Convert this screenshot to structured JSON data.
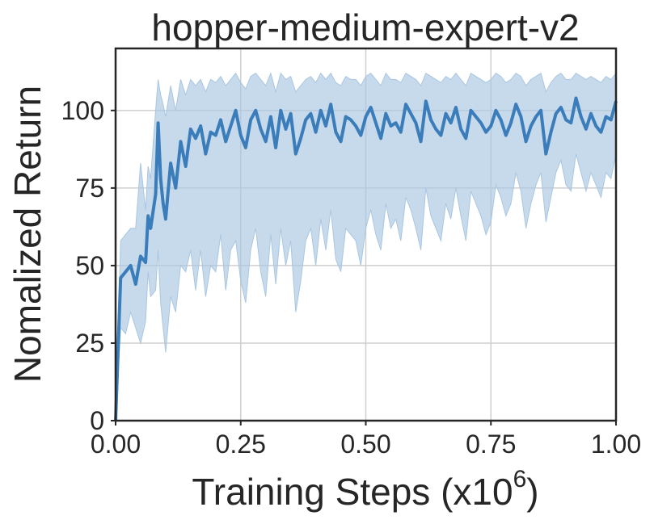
{
  "chart_data": {
    "type": "line",
    "title": "hopper-medium-expert-v2",
    "xlabel": "Training Steps (x10",
    "xlabel_exp": "6",
    "xlabel_close": ")",
    "ylabel": "Nomalized Return",
    "xlim": [
      0.0,
      1.0
    ],
    "ylim": [
      0,
      120
    ],
    "xticks": [
      0.0,
      0.25,
      0.5,
      0.75,
      1.0
    ],
    "xtick_labels": [
      "0.00",
      "0.25",
      "0.50",
      "0.75",
      "1.00"
    ],
    "yticks": [
      0,
      25,
      50,
      75,
      100
    ],
    "ytick_labels": [
      "0",
      "25",
      "50",
      "75",
      "100"
    ],
    "grid": true,
    "colors": {
      "line": "#3a7dba",
      "band": "#a9c6e2"
    },
    "series": [
      {
        "x": [
          0.0,
          0.01,
          0.02,
          0.03,
          0.04,
          0.05,
          0.06,
          0.065,
          0.07,
          0.08,
          0.085,
          0.09,
          0.095,
          0.1,
          0.11,
          0.12,
          0.13,
          0.14,
          0.15,
          0.16,
          0.17,
          0.18,
          0.19,
          0.2,
          0.21,
          0.22,
          0.23,
          0.24,
          0.25,
          0.26,
          0.27,
          0.28,
          0.29,
          0.3,
          0.31,
          0.32,
          0.33,
          0.34,
          0.35,
          0.36,
          0.37,
          0.38,
          0.39,
          0.4,
          0.41,
          0.42,
          0.43,
          0.44,
          0.45,
          0.46,
          0.47,
          0.48,
          0.49,
          0.5,
          0.51,
          0.52,
          0.53,
          0.54,
          0.55,
          0.56,
          0.57,
          0.58,
          0.59,
          0.6,
          0.61,
          0.62,
          0.63,
          0.64,
          0.65,
          0.66,
          0.67,
          0.68,
          0.69,
          0.7,
          0.71,
          0.72,
          0.73,
          0.74,
          0.75,
          0.76,
          0.77,
          0.78,
          0.79,
          0.8,
          0.81,
          0.82,
          0.83,
          0.84,
          0.85,
          0.86,
          0.87,
          0.88,
          0.89,
          0.9,
          0.91,
          0.92,
          0.93,
          0.94,
          0.95,
          0.96,
          0.97,
          0.98,
          0.99,
          1.0
        ],
        "y": [
          0,
          46,
          48,
          50,
          44,
          53,
          51,
          66,
          62,
          73,
          96,
          78,
          70,
          65,
          83,
          75,
          90,
          82,
          94,
          91,
          95,
          86,
          93,
          92,
          97,
          90,
          95,
          100,
          92,
          88,
          97,
          100,
          94,
          90,
          98,
          88,
          100,
          94,
          99,
          86,
          91,
          97,
          99,
          93,
          100,
          95,
          102,
          93,
          90,
          98,
          97,
          95,
          92,
          98,
          101,
          96,
          91,
          99,
          95,
          96,
          93,
          102,
          99,
          96,
          90,
          103,
          97,
          94,
          92,
          99,
          96,
          101,
          94,
          91,
          100,
          98,
          96,
          93,
          95,
          100,
          97,
          92,
          96,
          102,
          98,
          90,
          95,
          98,
          100,
          86,
          93,
          99,
          101,
          97,
          96,
          104,
          98,
          94,
          99,
          95,
          93,
          98,
          97,
          103
        ],
        "lower": [
          0,
          30,
          28,
          35,
          30,
          25,
          32,
          48,
          40,
          42,
          55,
          38,
          30,
          22,
          40,
          35,
          50,
          48,
          55,
          42,
          55,
          40,
          50,
          48,
          60,
          42,
          55,
          58,
          45,
          38,
          55,
          62,
          48,
          40,
          60,
          44,
          62,
          50,
          58,
          35,
          45,
          58,
          62,
          50,
          65,
          55,
          68,
          52,
          48,
          62,
          60,
          58,
          50,
          62,
          68,
          60,
          55,
          70,
          62,
          65,
          58,
          72,
          68,
          62,
          55,
          75,
          66,
          62,
          58,
          70,
          65,
          75,
          66,
          58,
          74,
          70,
          66,
          60,
          64,
          76,
          72,
          66,
          70,
          80,
          74,
          62,
          70,
          76,
          80,
          64,
          72,
          80,
          84,
          76,
          74,
          86,
          80,
          74,
          80,
          76,
          72,
          80,
          78,
          86
        ],
        "upper": [
          0,
          58,
          60,
          62,
          62,
          83,
          68,
          82,
          78,
          100,
          110,
          105,
          102,
          98,
          108,
          100,
          110,
          105,
          110,
          108,
          110,
          106,
          110,
          109,
          111,
          108,
          110,
          112,
          109,
          107,
          111,
          112,
          110,
          108,
          112,
          106,
          112,
          110,
          111,
          106,
          108,
          110,
          111,
          109,
          112,
          110,
          112,
          109,
          108,
          111,
          110,
          110,
          108,
          111,
          112,
          110,
          108,
          112,
          110,
          110,
          109,
          112,
          111,
          110,
          108,
          112,
          111,
          110,
          109,
          111,
          110,
          112,
          110,
          108,
          112,
          111,
          110,
          109,
          110,
          112,
          111,
          109,
          110,
          112,
          111,
          108,
          110,
          111,
          112,
          106,
          109,
          111,
          112,
          110,
          110,
          112,
          111,
          110,
          111,
          110,
          109,
          111,
          110,
          112
        ]
      }
    ]
  }
}
